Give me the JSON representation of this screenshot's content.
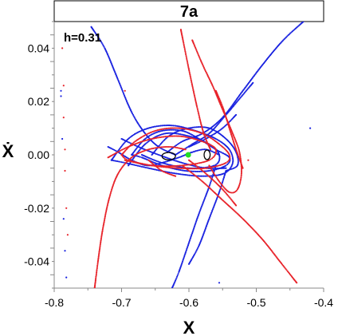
{
  "chart_data": {
    "type": "scatter",
    "title": "7a",
    "annotation": "h=0.31",
    "xlabel": "X",
    "ylabel": "Ẋ",
    "xlim": [
      -0.8,
      -0.4
    ],
    "ylim": [
      -0.05,
      0.05
    ],
    "xticks": [
      "-0.8",
      "-0.7",
      "-0.6",
      "-0.5",
      "-0.4"
    ],
    "yticks": [
      "0.04",
      "0.02",
      "0.00",
      "-0.02",
      "-0.04"
    ],
    "grid": false,
    "legend": "none",
    "colors": {
      "red": "#e8242b",
      "blue": "#1a23e0",
      "green": "#22dd22",
      "black": "#000000"
    },
    "series": [
      {
        "color_key": "blue",
        "curves": [
          [
            [
              -0.745,
              0.048
            ],
            [
              -0.725,
              0.04
            ],
            [
              -0.705,
              0.028
            ],
            [
              -0.685,
              0.016
            ],
            [
              -0.665,
              0.008
            ],
            [
              -0.645,
              0.003
            ],
            [
              -0.62,
              0.0
            ]
          ],
          [
            [
              -0.72,
              0.003
            ],
            [
              -0.705,
              0.001
            ],
            [
              -0.685,
              -0.002
            ],
            [
              -0.662,
              -0.004
            ],
            [
              -0.64,
              -0.003
            ],
            [
              -0.615,
              -0.001
            ],
            [
              -0.595,
              0.001
            ],
            [
              -0.575,
              0.002
            ],
            [
              -0.555,
              0.0
            ]
          ],
          [
            [
              -0.685,
              0.0
            ],
            [
              -0.665,
              0.006
            ],
            [
              -0.64,
              0.009
            ],
            [
              -0.61,
              0.009
            ],
            [
              -0.585,
              0.006
            ],
            [
              -0.56,
              0.002
            ],
            [
              -0.54,
              -0.001
            ],
            [
              -0.545,
              -0.004
            ],
            [
              -0.57,
              -0.006
            ],
            [
              -0.605,
              -0.006
            ],
            [
              -0.64,
              -0.004
            ],
            [
              -0.67,
              -0.001
            ],
            [
              -0.685,
              0.0
            ]
          ],
          [
            [
              -0.7,
              0.006
            ],
            [
              -0.675,
              0.003
            ],
            [
              -0.645,
              0.0
            ],
            [
              -0.61,
              -0.003
            ],
            [
              -0.575,
              -0.005
            ],
            [
              -0.545,
              -0.005
            ]
          ],
          [
            [
              -0.715,
              -0.002
            ],
            [
              -0.69,
              0.006
            ],
            [
              -0.66,
              0.01
            ],
            [
              -0.625,
              0.011
            ],
            [
              -0.59,
              0.009
            ],
            [
              -0.56,
              0.006
            ],
            [
              -0.54,
              0.002
            ],
            [
              -0.535,
              -0.003
            ],
            [
              -0.548,
              -0.007
            ],
            [
              -0.58,
              -0.008
            ],
            [
              -0.62,
              -0.007
            ],
            [
              -0.66,
              -0.005
            ],
            [
              -0.695,
              -0.003
            ],
            [
              -0.715,
              -0.002
            ]
          ],
          [
            [
              -0.69,
              -0.004
            ],
            [
              -0.665,
              0.004
            ],
            [
              -0.635,
              0.008
            ],
            [
              -0.6,
              0.007
            ],
            [
              -0.57,
              0.004
            ],
            [
              -0.555,
              0.0
            ],
            [
              -0.562,
              -0.004
            ],
            [
              -0.6,
              -0.005
            ],
            [
              -0.64,
              -0.003
            ],
            [
              -0.67,
              0.0
            ]
          ],
          [
            [
              -0.655,
              0.0
            ],
            [
              -0.63,
              0.007
            ],
            [
              -0.6,
              0.01
            ],
            [
              -0.57,
              0.01
            ],
            [
              -0.545,
              0.006
            ],
            [
              -0.53,
              0.001
            ],
            [
              -0.528,
              -0.004
            ],
            [
              -0.545,
              -0.006
            ]
          ],
          [
            [
              -0.632,
              0.001
            ],
            [
              -0.61,
              0.005
            ],
            [
              -0.58,
              0.008
            ],
            [
              -0.55,
              0.014
            ],
            [
              -0.52,
              0.024
            ],
            [
              -0.49,
              0.034
            ],
            [
              -0.46,
              0.043
            ],
            [
              -0.43,
              0.05
            ]
          ],
          [
            [
              -0.62,
              0.0
            ],
            [
              -0.595,
              0.004
            ],
            [
              -0.57,
              0.008
            ],
            [
              -0.545,
              0.015
            ],
            [
              -0.525,
              0.021
            ],
            [
              -0.505,
              0.027
            ]
          ],
          [
            [
              -0.6,
              0.003
            ],
            [
              -0.575,
              0.006
            ],
            [
              -0.55,
              0.01
            ],
            [
              -0.53,
              0.015
            ]
          ],
          [
            [
              -0.56,
              -0.004
            ],
            [
              -0.57,
              -0.012
            ],
            [
              -0.585,
              -0.022
            ],
            [
              -0.6,
              -0.033
            ],
            [
              -0.615,
              -0.044
            ],
            [
              -0.625,
              -0.05
            ]
          ],
          [
            [
              -0.545,
              -0.006
            ],
            [
              -0.555,
              -0.014
            ],
            [
              -0.57,
              -0.024
            ],
            [
              -0.585,
              -0.034
            ],
            [
              -0.6,
              -0.041
            ]
          ]
        ],
        "scatter": [
          [
            -0.79,
            0.022
          ],
          [
            -0.79,
            0.024
          ],
          [
            -0.788,
            0.006
          ],
          [
            -0.786,
            -0.024
          ],
          [
            -0.784,
            -0.036
          ],
          [
            -0.782,
            -0.046
          ],
          [
            -0.555,
            -0.048
          ],
          [
            -0.42,
            0.01
          ]
        ]
      },
      {
        "color_key": "red",
        "curves": [
          [
            [
              -0.74,
              -0.05
            ],
            [
              -0.735,
              -0.04
            ],
            [
              -0.728,
              -0.028
            ],
            [
              -0.718,
              -0.016
            ],
            [
              -0.705,
              -0.007
            ],
            [
              -0.685,
              -0.001
            ],
            [
              -0.66,
              0.002
            ],
            [
              -0.63,
              0.003
            ],
            [
              -0.605,
              0.002
            ]
          ],
          [
            [
              -0.7,
              0.0
            ],
            [
              -0.68,
              0.005
            ],
            [
              -0.65,
              0.009
            ],
            [
              -0.615,
              0.01
            ],
            [
              -0.58,
              0.008
            ],
            [
              -0.555,
              0.004
            ],
            [
              -0.54,
              0.0
            ],
            [
              -0.545,
              -0.003
            ],
            [
              -0.575,
              -0.005
            ],
            [
              -0.615,
              -0.005
            ],
            [
              -0.655,
              -0.004
            ],
            [
              -0.69,
              -0.002
            ],
            [
              -0.7,
              0.0
            ]
          ],
          [
            [
              -0.72,
              -0.001
            ],
            [
              -0.69,
              0.003
            ],
            [
              -0.655,
              0.006
            ],
            [
              -0.615,
              0.007
            ],
            [
              -0.58,
              0.005
            ],
            [
              -0.56,
              0.002
            ],
            [
              -0.57,
              -0.002
            ],
            [
              -0.61,
              -0.004
            ],
            [
              -0.655,
              -0.004
            ],
            [
              -0.695,
              -0.002
            ]
          ],
          [
            [
              -0.612,
              0.047
            ],
            [
              -0.6,
              0.032
            ],
            [
              -0.588,
              0.018
            ],
            [
              -0.578,
              0.008
            ],
            [
              -0.568,
              0.002
            ]
          ],
          [
            [
              -0.595,
              0.043
            ],
            [
              -0.58,
              0.034
            ],
            [
              -0.565,
              0.026
            ],
            [
              -0.555,
              0.02
            ],
            [
              -0.545,
              0.014
            ],
            [
              -0.535,
              0.008
            ],
            [
              -0.525,
              0.001
            ],
            [
              -0.522,
              -0.007
            ],
            [
              -0.528,
              -0.013
            ],
            [
              -0.54,
              -0.014
            ],
            [
              -0.555,
              -0.01
            ],
            [
              -0.57,
              -0.004
            ]
          ],
          [
            [
              -0.56,
              0.024
            ],
            [
              -0.55,
              0.018
            ],
            [
              -0.54,
              0.01
            ],
            [
              -0.53,
              0.002
            ],
            [
              -0.52,
              -0.005
            ]
          ],
          [
            [
              -0.61,
              -0.004
            ],
            [
              -0.58,
              -0.01
            ],
            [
              -0.55,
              -0.017
            ],
            [
              -0.52,
              -0.024
            ],
            [
              -0.49,
              -0.032
            ],
            [
              -0.465,
              -0.04
            ],
            [
              -0.44,
              -0.048
            ]
          ],
          [
            [
              -0.6,
              -0.002
            ],
            [
              -0.575,
              -0.007
            ],
            [
              -0.55,
              -0.013
            ],
            [
              -0.53,
              -0.019
            ]
          ],
          [
            [
              -0.66,
              -0.002
            ],
            [
              -0.64,
              -0.006
            ],
            [
              -0.62,
              -0.008
            ]
          ]
        ],
        "scatter": [
          [
            -0.788,
            0.04
          ],
          [
            -0.786,
            0.026
          ],
          [
            -0.786,
            0.014
          ],
          [
            -0.784,
            0.002
          ],
          [
            -0.784,
            -0.006
          ],
          [
            -0.782,
            -0.02
          ],
          [
            -0.78,
            -0.03
          ],
          [
            -0.695,
            0.024
          ],
          [
            -0.512,
            -0.002
          ]
        ]
      }
    ],
    "inner_loops": [
      {
        "center": [
          -0.63,
          -0.0005
        ],
        "rx": 0.01,
        "ry": 0.0014,
        "color_key": "black"
      },
      {
        "center": [
          -0.573,
          0.0
        ],
        "rx": 0.0045,
        "ry": 0.0018,
        "color_key": "black"
      }
    ],
    "fixed_point": {
      "x": -0.601,
      "y": 0.0,
      "color_key": "green"
    }
  }
}
